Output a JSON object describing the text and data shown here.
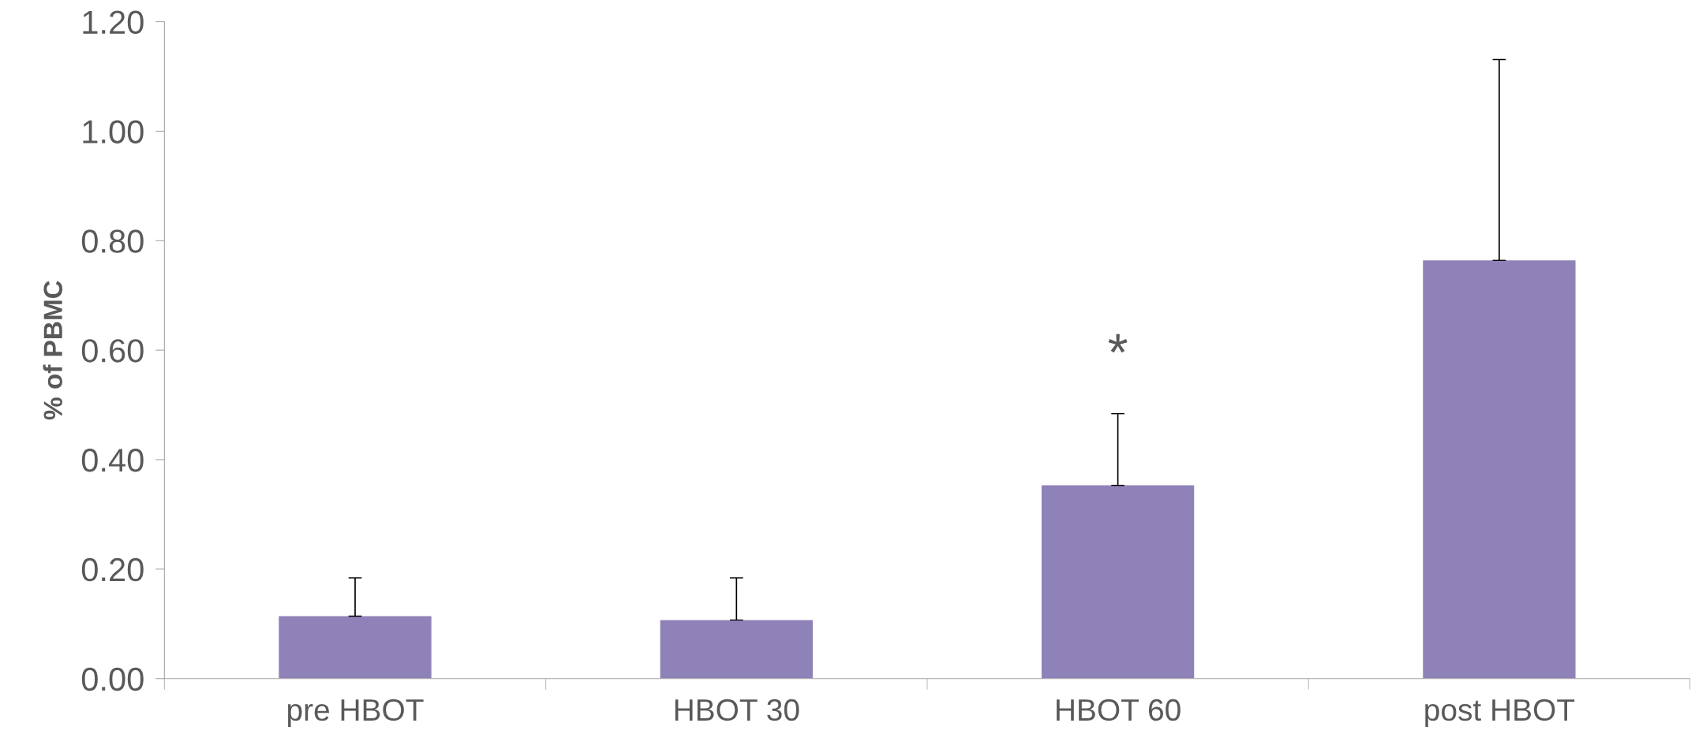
{
  "chart_data": {
    "type": "bar",
    "ylabel": "% of PBMC",
    "categories": [
      "pre HBOT",
      "HBOT 30",
      "HBOT 60",
      "post HBOT"
    ],
    "values": [
      0.114,
      0.107,
      0.353,
      0.764
    ],
    "errors": [
      [
        0.114,
        0.184
      ],
      [
        0.107,
        0.184
      ],
      [
        0.353,
        0.484
      ],
      [
        0.764,
        1.131
      ]
    ],
    "color": "#8f82b8",
    "ylim": [
      0,
      1.2
    ],
    "yticks": [
      {
        "value": 0,
        "label": "0.00"
      },
      {
        "value": 0.2,
        "label": "0.20"
      },
      {
        "value": 0.4,
        "label": "0.40"
      },
      {
        "value": 0.6,
        "label": "0.60"
      },
      {
        "value": 0.8,
        "label": "0.80"
      },
      {
        "value": 1.0,
        "label": "1.00"
      },
      {
        "value": 1.2,
        "label": "1.20"
      }
    ],
    "annotations": [
      "*"
    ],
    "grid": false
  }
}
